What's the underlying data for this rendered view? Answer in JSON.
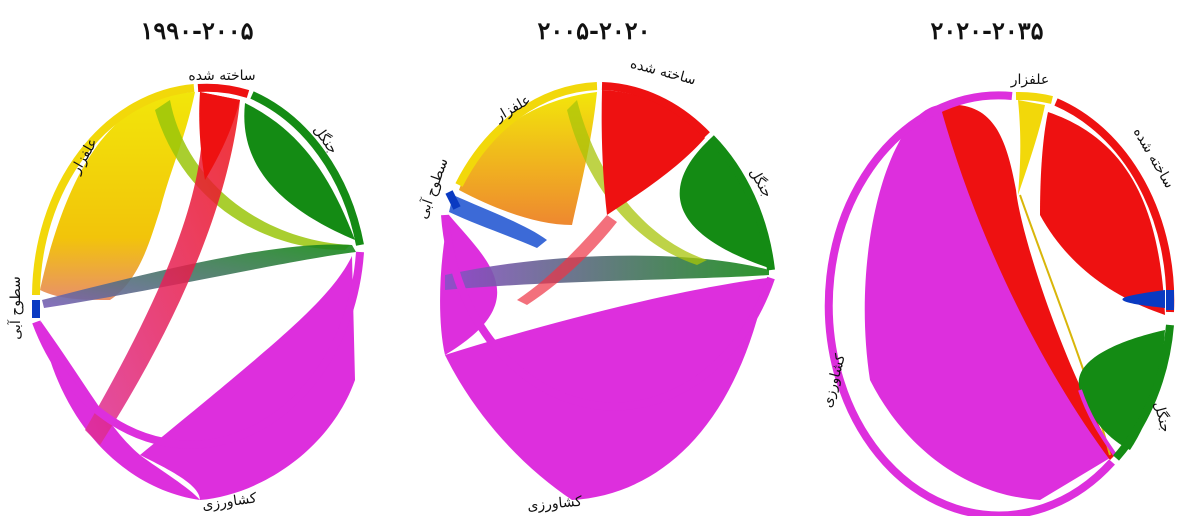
{
  "colors": {
    "agriculture": "#dd2fdd",
    "grassland": "#f2d80a",
    "built": "#ee1111",
    "forest": "#148b14",
    "water": "#0a3ac2"
  },
  "panels": [
    {
      "title": "۱۹۹۰-۲۰۰۵",
      "labels": {
        "built": "ساخته شده",
        "forest": "جنگل",
        "grassland": "علفزار",
        "water": "سطوح آبی",
        "agriculture": "کشاورزی"
      }
    },
    {
      "title": "۲۰۰۵-۲۰۲۰",
      "labels": {
        "built": "ساخته شده",
        "forest": "جنگل",
        "grassland": "علفزار",
        "water": "سطوح آبی",
        "agriculture": "کشاورزی"
      }
    },
    {
      "title": "۲۰۲۰-۲۰۳۵",
      "labels": {
        "built": "ساخته شده",
        "forest": "جنگل",
        "grassland": "علفزار",
        "agriculture": "کشاورزی"
      }
    }
  ]
}
